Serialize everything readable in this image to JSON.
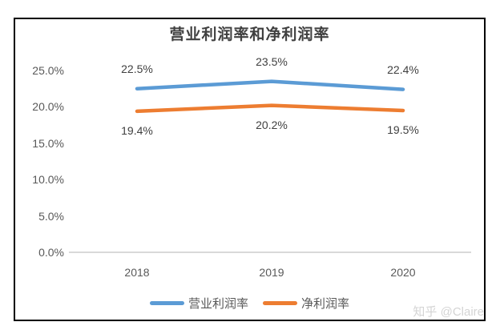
{
  "watermark": "知乎 @Claire",
  "chart_data": {
    "type": "line",
    "title": "营业利润率和净利润率",
    "categories": [
      "2018",
      "2019",
      "2020"
    ],
    "series": [
      {
        "name": "营业利润率",
        "values": [
          22.5,
          23.5,
          22.4
        ],
        "labels": [
          "22.5%",
          "23.5%",
          "22.4%"
        ],
        "color": "#5B9BD5",
        "label_position": "above"
      },
      {
        "name": "净利润率",
        "values": [
          19.4,
          20.2,
          19.5
        ],
        "labels": [
          "19.4%",
          "20.2%",
          "19.5%"
        ],
        "color": "#ED7D31",
        "label_position": "below"
      }
    ],
    "y_ticks": [
      {
        "value": 0,
        "label": "0.0%"
      },
      {
        "value": 5,
        "label": "5.0%"
      },
      {
        "value": 10,
        "label": "10.0%"
      },
      {
        "value": 15,
        "label": "15.0%"
      },
      {
        "value": 20,
        "label": "20.0%"
      },
      {
        "value": 25,
        "label": "25.0%"
      }
    ],
    "ylim": [
      0,
      25
    ],
    "grid": false,
    "legend_position": "bottom",
    "axis_color": "#D9D9D9"
  }
}
